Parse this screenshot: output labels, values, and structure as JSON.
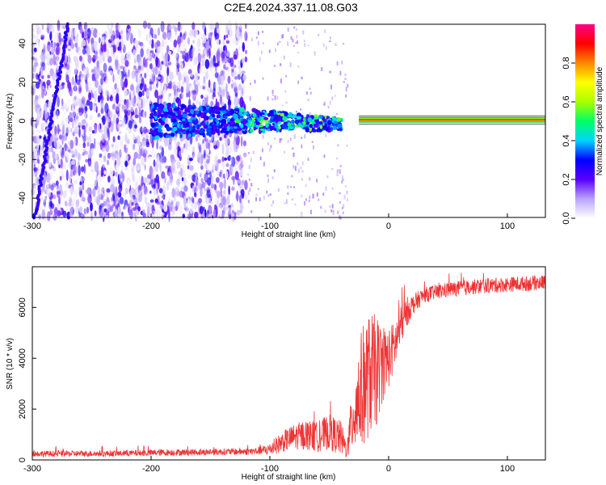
{
  "page": {
    "title": "C2E4.2024.337.11.08.G03"
  },
  "chart_data": [
    {
      "type": "heatmap",
      "title": "C2E4.2024.337.11.08.G03",
      "xlabel": "Height of straight line (km)",
      "ylabel": "Frequency (Hz)",
      "xlim": [
        -300,
        132
      ],
      "ylim": [
        -50,
        50
      ],
      "x_ticks": [
        -300,
        -200,
        -100,
        0,
        100
      ],
      "y_ticks": [
        -40,
        -20,
        0,
        20,
        40
      ],
      "grid": false,
      "colorbar": {
        "label": "Normalized spectral amplitude",
        "range": [
          0,
          1
        ],
        "ticks": [
          "0.0",
          "0.2",
          "0.4",
          "0.6",
          "0.8"
        ],
        "colors": [
          "#ffffff",
          "#b9a3ff",
          "#5a00ff",
          "#0000ff",
          "#00d5ff",
          "#00ff66",
          "#aaff00",
          "#ffff00",
          "#ff8800",
          "#ff0000",
          "#ff0088"
        ]
      },
      "features": [
        {
          "name": "dense-noise-region",
          "x_range": [
            -300,
            -120
          ],
          "y_range": [
            -50,
            50
          ],
          "level": 0.2
        },
        {
          "name": "oblique-trace",
          "x": [
            -298,
            -270
          ],
          "y": [
            -50,
            50
          ],
          "level": 0.25
        },
        {
          "name": "narrow-band-spread",
          "x_range": [
            -200,
            -40
          ],
          "y_range": [
            -6,
            6
          ],
          "level": 0.35
        },
        {
          "name": "carrier-line",
          "x_range": [
            -25,
            132
          ],
          "y": 0.5,
          "level": 1.0
        }
      ]
    },
    {
      "type": "line",
      "xlabel": "Height of straight line (km)",
      "ylabel": "SNR (10 * v/v)",
      "xlim": [
        -300,
        132
      ],
      "ylim": [
        0,
        7600
      ],
      "x_ticks": [
        -300,
        -200,
        -100,
        0,
        100
      ],
      "y_ticks": [
        0,
        2000,
        4000,
        6000
      ],
      "grid": false,
      "series_color": "#ee3333",
      "x": [
        -300,
        -280,
        -260,
        -240,
        -220,
        -200,
        -180,
        -160,
        -140,
        -120,
        -110,
        -100,
        -90,
        -80,
        -70,
        -60,
        -50,
        -40,
        -35,
        -30,
        -25,
        -20,
        -15,
        -10,
        -5,
        0,
        5,
        10,
        15,
        20,
        30,
        40,
        50,
        60,
        80,
        100,
        120,
        132
      ],
      "y": [
        250,
        240,
        250,
        250,
        260,
        280,
        300,
        300,
        320,
        330,
        350,
        420,
        700,
        900,
        1000,
        900,
        1100,
        850,
        350,
        1800,
        2500,
        3100,
        3400,
        3500,
        3800,
        4000,
        4500,
        5200,
        5800,
        6100,
        6500,
        6600,
        6700,
        6750,
        6850,
        6900,
        6950,
        7000
      ],
      "noise_amplitude": [
        120,
        120,
        120,
        120,
        120,
        130,
        130,
        130,
        130,
        140,
        150,
        250,
        400,
        500,
        600,
        600,
        700,
        700,
        300,
        1500,
        2200,
        2500,
        2400,
        2200,
        1500,
        1200,
        1000,
        800,
        600,
        400,
        300,
        300,
        300,
        300,
        300,
        300,
        300,
        300
      ]
    }
  ]
}
